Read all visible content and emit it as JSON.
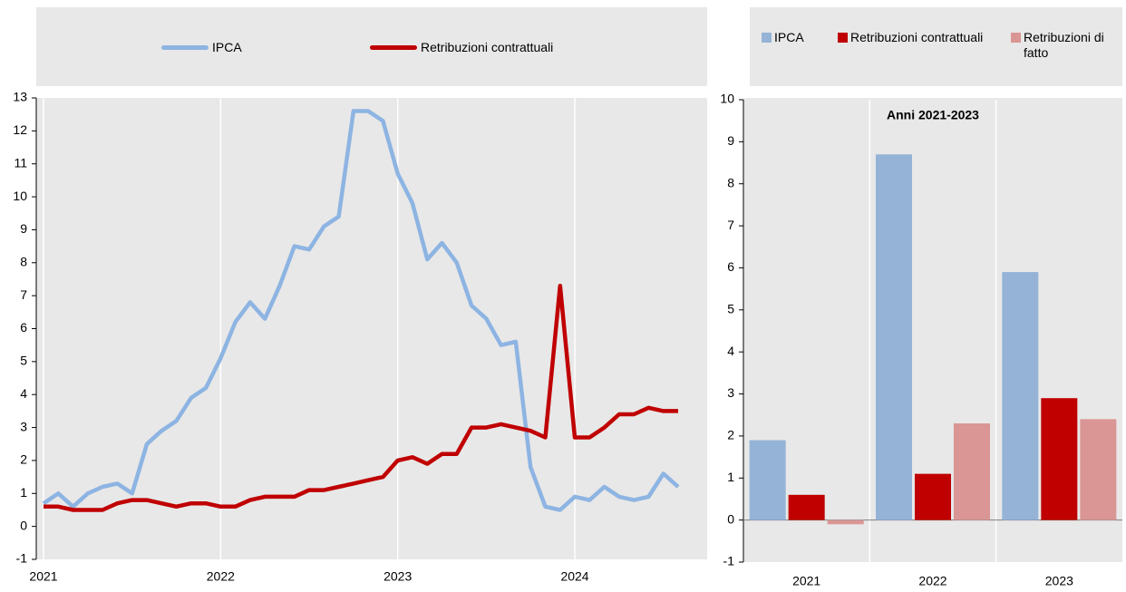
{
  "chart_data": [
    {
      "type": "line",
      "categories": [
        "2021",
        null,
        null,
        null,
        null,
        null,
        null,
        null,
        null,
        null,
        null,
        null,
        "2022",
        null,
        null,
        null,
        null,
        null,
        null,
        null,
        null,
        null,
        null,
        null,
        "2023",
        null,
        null,
        null,
        null,
        null,
        null,
        null,
        null,
        null,
        null,
        null,
        "2024",
        null,
        null,
        null,
        null,
        null,
        null,
        null
      ],
      "series": [
        {
          "name": "IPCA",
          "color": "#8db4e2",
          "values": [
            0.7,
            1.0,
            0.6,
            1.0,
            1.2,
            1.3,
            1.0,
            2.5,
            2.9,
            3.2,
            3.9,
            4.2,
            5.1,
            6.2,
            6.8,
            6.3,
            7.3,
            8.5,
            8.4,
            9.1,
            9.4,
            12.6,
            12.6,
            12.3,
            10.7,
            9.8,
            8.1,
            8.6,
            8.0,
            6.7,
            6.3,
            5.5,
            5.6,
            1.8,
            0.6,
            0.5,
            0.9,
            0.8,
            1.2,
            0.9,
            0.8,
            0.9,
            1.6,
            1.2
          ]
        },
        {
          "name": "Retribuzioni contrattuali",
          "color": "#c00000",
          "values": [
            0.6,
            0.6,
            0.5,
            0.5,
            0.5,
            0.7,
            0.8,
            0.8,
            0.7,
            0.6,
            0.7,
            0.7,
            0.6,
            0.6,
            0.8,
            0.9,
            0.9,
            0.9,
            1.1,
            1.1,
            1.2,
            1.3,
            1.4,
            1.5,
            2.0,
            2.1,
            1.9,
            2.2,
            2.2,
            3.0,
            3.0,
            3.1,
            3.0,
            2.9,
            2.7,
            7.3,
            2.7,
            2.7,
            3.0,
            3.4,
            3.4,
            3.6,
            3.5,
            3.5
          ]
        }
      ],
      "ylim": [
        -1,
        13
      ],
      "yticks": [
        -1,
        0,
        1,
        2,
        3,
        4,
        5,
        6,
        7,
        8,
        9,
        10,
        11,
        12,
        13
      ],
      "grid": true
    },
    {
      "type": "bar",
      "annotation": "Anni 2021-2023",
      "categories": [
        "2021",
        "2022",
        "2023"
      ],
      "series": [
        {
          "name": "IPCA",
          "color": "#95b3d7",
          "values": [
            1.9,
            8.7,
            5.9
          ]
        },
        {
          "name": "Retribuzioni contrattuali",
          "color": "#c00000",
          "values": [
            0.6,
            1.1,
            2.9
          ]
        },
        {
          "name": "Retribuzioni di fatto",
          "color": "#da9694",
          "values": [
            -0.1,
            2.3,
            2.4
          ]
        }
      ],
      "ylim": [
        -1,
        10
      ],
      "yticks": [
        -1,
        0,
        1,
        2,
        3,
        4,
        5,
        6,
        7,
        8,
        9,
        10
      ],
      "grid": true
    }
  ]
}
